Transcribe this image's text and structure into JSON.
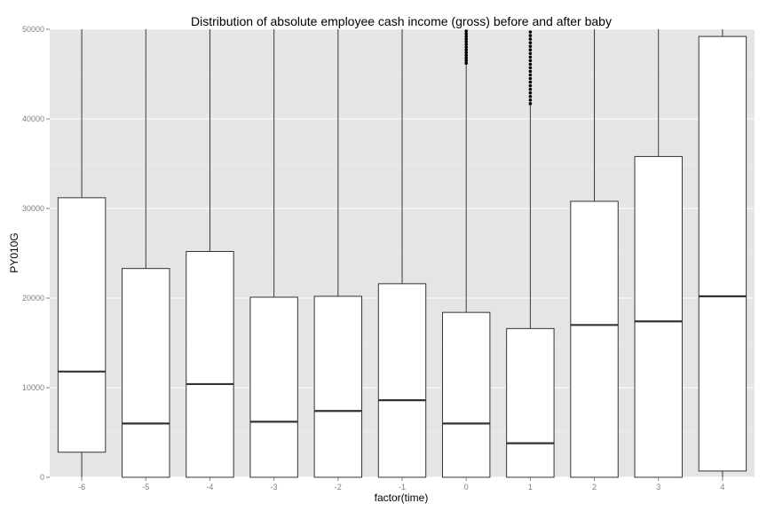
{
  "chart_data": {
    "type": "boxplot",
    "title": "Distribution of absolute employee cash income (gross) before and after baby",
    "xlabel": "factor(time)",
    "ylabel": "PY010G",
    "ylim": [
      0,
      50000
    ],
    "yticks": [
      "0",
      "10000",
      "20000",
      "30000",
      "40000",
      "50000"
    ],
    "grid": true,
    "background": "#e5e5e5",
    "grid_color": "#ffffff",
    "box_fill": "#ffffff",
    "line_color": "#333333",
    "categories": [
      "-6",
      "-5",
      "-4",
      "-3",
      "-2",
      "-1",
      "0",
      "1",
      "2",
      "3",
      "4"
    ],
    "boxes": [
      {
        "category": "-6",
        "whisker_low": 0,
        "q1": 2800,
        "median": 11800,
        "q3": 31200,
        "whisker_high": 50000
      },
      {
        "category": "-5",
        "whisker_low": 0,
        "q1": 0,
        "median": 6000,
        "q3": 23300,
        "whisker_high": 50000
      },
      {
        "category": "-4",
        "whisker_low": 0,
        "q1": 0,
        "median": 10400,
        "q3": 25200,
        "whisker_high": 50000
      },
      {
        "category": "-3",
        "whisker_low": 0,
        "q1": 0,
        "median": 6200,
        "q3": 20100,
        "whisker_high": 50000
      },
      {
        "category": "-2",
        "whisker_low": 0,
        "q1": 0,
        "median": 7400,
        "q3": 20200,
        "whisker_high": 50000
      },
      {
        "category": "-1",
        "whisker_low": 0,
        "q1": 0,
        "median": 8600,
        "q3": 21600,
        "whisker_high": 50000
      },
      {
        "category": "0",
        "whisker_low": 0,
        "q1": 0,
        "median": 6000,
        "q3": 18400,
        "whisker_high": 46000,
        "outliers": [
          46200,
          46500,
          46800,
          47100,
          47400,
          47700,
          48000,
          48300,
          48600,
          48900,
          49200,
          49500,
          49800
        ]
      },
      {
        "category": "1",
        "whisker_low": 0,
        "q1": 0,
        "median": 3800,
        "q3": 16600,
        "whisker_high": 41500,
        "outliers": [
          41700,
          42100,
          42500,
          42900,
          43300,
          43700,
          44100,
          44500,
          44900,
          45300,
          45700,
          46100,
          46500,
          46900,
          47300,
          47700,
          48100,
          48500,
          48900,
          49300,
          49700
        ]
      },
      {
        "category": "2",
        "whisker_low": 0,
        "q1": 0,
        "median": 17000,
        "q3": 30800,
        "whisker_high": 50000
      },
      {
        "category": "3",
        "whisker_low": 0,
        "q1": 0,
        "median": 17400,
        "q3": 35800,
        "whisker_high": 50000
      },
      {
        "category": "4",
        "whisker_low": 0,
        "q1": 700,
        "median": 20200,
        "q3": 49200,
        "whisker_high": 50000
      }
    ]
  }
}
